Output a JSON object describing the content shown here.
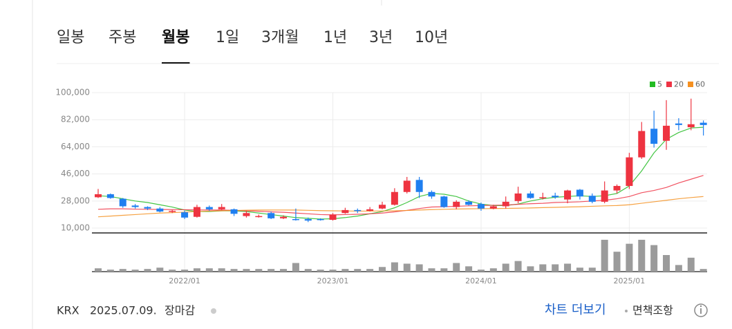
{
  "tabs": [
    "일봉",
    "주봉",
    "월봉",
    "1일",
    "3개월",
    "1년",
    "3년",
    "10년"
  ],
  "active_tab": 2,
  "chart_data": {
    "type": "candlestick",
    "categories": [
      null,
      null,
      null,
      null,
      null,
      null,
      null,
      "2022/01",
      null,
      null,
      null,
      null,
      null,
      null,
      null,
      null,
      null,
      null,
      null,
      "2023/01",
      null,
      null,
      null,
      null,
      null,
      null,
      null,
      null,
      null,
      null,
      null,
      "2024/01",
      null,
      null,
      null,
      null,
      null,
      null,
      null,
      null,
      null,
      null,
      null,
      "2025/01",
      null,
      null,
      null,
      null,
      null,
      null
    ],
    "open": [
      30500,
      32500,
      29500,
      25000,
      24000,
      23000,
      21000,
      20500,
      17500,
      24000,
      22500,
      22500,
      18000,
      17500,
      20000,
      16500,
      16000,
      16000,
      16000,
      15500,
      20000,
      22000,
      21500,
      23000,
      25500,
      34000,
      42000,
      34000,
      31000,
      24000,
      27500,
      26000,
      23000,
      24500,
      28000,
      33000,
      30000,
      31500,
      29000,
      35500,
      31500,
      27500,
      35000,
      38000,
      57000,
      76000,
      68000,
      79500,
      77000,
      80000
    ],
    "high": [
      36000,
      33000,
      30000,
      26000,
      24500,
      24000,
      22000,
      21500,
      25500,
      25000,
      26000,
      23000,
      21500,
      19000,
      21000,
      18500,
      23000,
      17000,
      16500,
      20000,
      23500,
      23000,
      24000,
      27500,
      36500,
      44000,
      44000,
      35000,
      31500,
      28500,
      28500,
      27000,
      25500,
      31000,
      37500,
      34500,
      33500,
      33500,
      35500,
      36000,
      33000,
      41000,
      39000,
      60000,
      80500,
      88000,
      95000,
      83000,
      96000,
      81500
    ],
    "low": [
      30000,
      29500,
      23500,
      23000,
      22000,
      20500,
      20000,
      16000,
      17000,
      21500,
      22000,
      18000,
      17000,
      17000,
      16000,
      16000,
      15000,
      14000,
      15000,
      15000,
      19500,
      20000,
      21000,
      22500,
      25000,
      33000,
      30000,
      29500,
      23500,
      22500,
      25000,
      21500,
      22500,
      23000,
      26500,
      29500,
      29000,
      29500,
      26500,
      29000,
      26500,
      26500,
      33000,
      36000,
      56000,
      63500,
      62000,
      75000,
      75000,
      71500
    ],
    "close": [
      32500,
      30000,
      24500,
      24000,
      23000,
      21000,
      21500,
      17000,
      24000,
      22500,
      24000,
      19500,
      20000,
      18000,
      16500,
      17500,
      15500,
      15000,
      15500,
      19000,
      22000,
      21500,
      22500,
      25500,
      34000,
      41500,
      34000,
      31000,
      24000,
      27500,
      25500,
      23000,
      24500,
      27500,
      33000,
      30000,
      30500,
      30500,
      35000,
      31000,
      27500,
      35000,
      38000,
      57000,
      74500,
      66000,
      78000,
      78500,
      79000,
      78500
    ],
    "up_color": "#ee3340",
    "down_color": "#1f7ff0",
    "ylim": [
      6800,
      100000
    ],
    "yticks": [
      {
        "value": 10000,
        "label": "10,000"
      },
      {
        "value": 28000,
        "label": "28,000"
      },
      {
        "value": 46000,
        "label": "46,000"
      },
      {
        "value": 64000,
        "label": "64,000"
      },
      {
        "value": 82000,
        "label": "82,000"
      },
      {
        "value": 100000,
        "label": "100,000"
      }
    ],
    "grid": true,
    "legend": "top-right",
    "series": [
      {
        "name": "5",
        "color": "#22bb22",
        "values": [
          31500,
          31000,
          29500,
          28000,
          27000,
          25500,
          24000,
          22000,
          21000,
          21000,
          21500,
          21500,
          21000,
          20000,
          19000,
          18000,
          17000,
          16500,
          16000,
          16200,
          17000,
          18000,
          19500,
          21000,
          23500,
          27000,
          31000,
          33000,
          32500,
          31000,
          28000,
          26000,
          25000,
          25000,
          26000,
          28000,
          29500,
          30500,
          31000,
          31500,
          31000,
          31500,
          33000,
          38000,
          48000,
          60000,
          69000,
          73500,
          76500,
          77000
        ]
      },
      {
        "name": "20",
        "color": "#ee3344",
        "values": [
          22500,
          22800,
          22800,
          22600,
          22500,
          22400,
          22300,
          22200,
          22100,
          22000,
          22000,
          21800,
          21500,
          21200,
          20800,
          20500,
          20000,
          19500,
          19000,
          18800,
          19000,
          19200,
          19500,
          20000,
          20800,
          21800,
          23000,
          24000,
          24200,
          24500,
          24800,
          25000,
          25200,
          25300,
          25800,
          26200,
          26500,
          27000,
          27200,
          27500,
          28000,
          28500,
          29500,
          31000,
          33500,
          35000,
          37000,
          40000,
          42500,
          45000
        ]
      },
      {
        "name": "60",
        "color": "#f59020",
        "values": [
          17500,
          18000,
          18500,
          19000,
          19500,
          20000,
          20300,
          20600,
          21000,
          21300,
          21500,
          21700,
          21900,
          22000,
          22000,
          22000,
          22000,
          21800,
          21600,
          21500,
          21400,
          21300,
          21300,
          21400,
          21500,
          21700,
          22000,
          22300,
          22500,
          22700,
          22800,
          22900,
          23000,
          23100,
          23200,
          23400,
          23600,
          23800,
          24000,
          24200,
          24500,
          24800,
          25000,
          25500,
          26500,
          27500,
          28500,
          29500,
          30300,
          31000
        ]
      }
    ],
    "volume": {
      "color": "#9b9b9b",
      "ylim": [
        0,
        50
      ],
      "values": [
        5,
        3,
        4,
        3,
        4,
        6,
        3,
        3,
        5,
        5,
        5,
        4,
        4,
        4,
        4,
        4,
        13,
        4,
        3,
        3,
        4,
        4,
        4,
        7,
        14,
        12,
        11,
        5,
        5,
        13,
        8,
        3,
        5,
        12,
        16,
        8,
        11,
        11,
        12,
        6,
        6,
        48,
        30,
        42,
        48,
        40,
        25,
        10,
        21,
        4
      ]
    }
  },
  "footer": {
    "exchange": "KRX",
    "date": "2025.07.09.",
    "status": "장마감",
    "more": "차트 더보기",
    "disclaimer": "면책조항"
  }
}
